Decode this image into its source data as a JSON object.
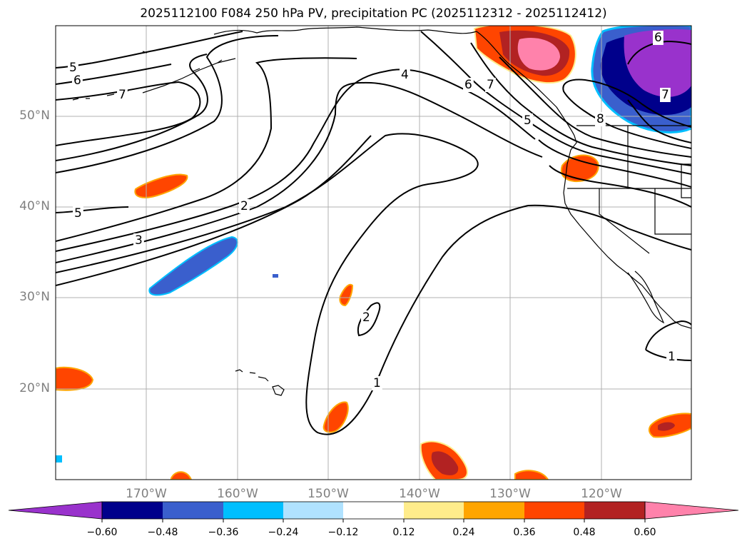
{
  "title": "2025112100 F084 250 hPa PV, precipitation PC (2025112312 - 2025112412)",
  "map": {
    "latitude_labels": [
      "50°N",
      "40°N",
      "30°N",
      "20°N"
    ],
    "longitude_labels": [
      "170°W",
      "160°W",
      "150°W",
      "140°W",
      "130°W",
      "120°W"
    ],
    "pv_contour_labels": [
      "5",
      "6",
      "7",
      "5",
      "3",
      "2",
      "4",
      "6",
      "7",
      "5",
      "8",
      "6",
      "7",
      "2",
      "1",
      "1"
    ],
    "land_color": "#000000",
    "grid_color": "#b0b0b0"
  },
  "colorbar": {
    "tick_labels": [
      "−0.60",
      "−0.48",
      "−0.36",
      "−0.24",
      "−0.12",
      "0.12",
      "0.24",
      "0.36",
      "0.48",
      "0.60"
    ],
    "colors": [
      "#9932cc",
      "#00008b",
      "#3a5fcd",
      "#00bfff",
      "#b0e2ff",
      "#ffffff",
      "#ffec8b",
      "#ffa500",
      "#ff4500",
      "#b22222",
      "#ff82ab"
    ]
  }
}
